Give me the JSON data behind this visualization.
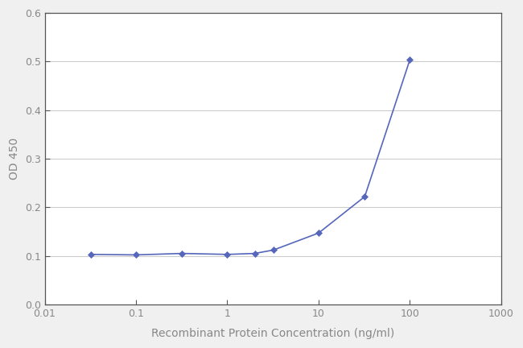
{
  "x": [
    0.032,
    0.1,
    0.32,
    1.0,
    2.0,
    3.2,
    10.0,
    32.0,
    100.0
  ],
  "y": [
    0.103,
    0.102,
    0.105,
    0.103,
    0.105,
    0.112,
    0.147,
    0.222,
    0.504
  ],
  "line_color": "#5566bb",
  "marker": "D",
  "marker_size": 4,
  "xlabel": "Recombinant Protein Concentration (ng/ml)",
  "ylabel": "OD 450",
  "xlim": [
    0.01,
    1000
  ],
  "ylim": [
    0.0,
    0.6
  ],
  "yticks": [
    0.0,
    0.1,
    0.2,
    0.3,
    0.4,
    0.5,
    0.6
  ],
  "xlabel_fontsize": 10,
  "ylabel_fontsize": 10,
  "tick_fontsize": 9,
  "label_color": "#888888",
  "tick_label_color": "#888888",
  "background_color": "#f0f0f0",
  "plot_bg_color": "#ffffff",
  "grid_color": "#cccccc",
  "spine_color": "#555555",
  "line_width": 1.2
}
